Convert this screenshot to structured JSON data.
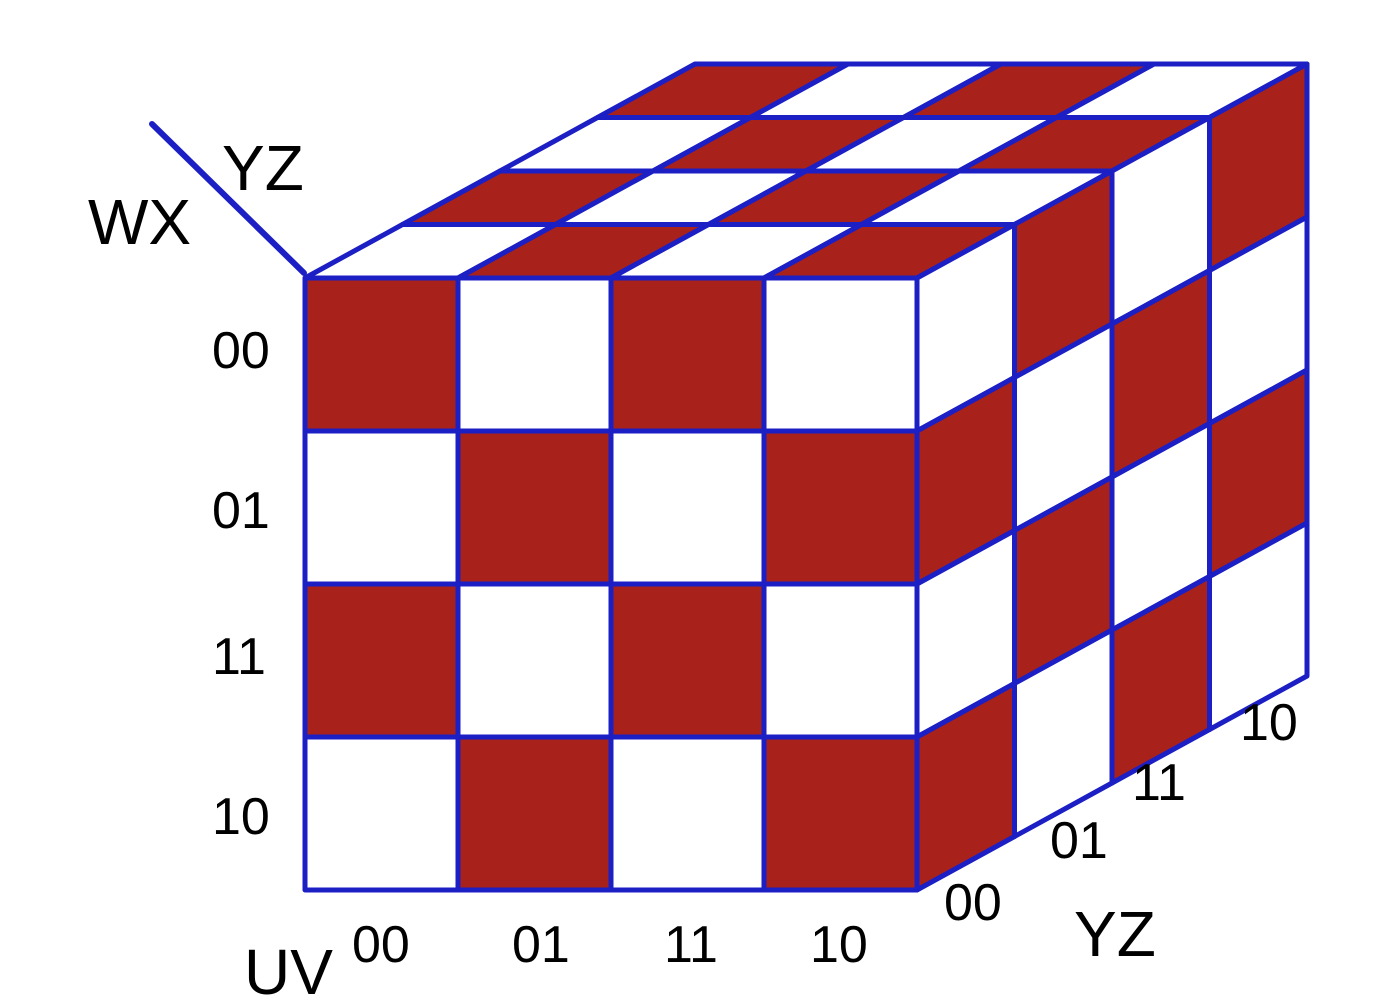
{
  "colors": {
    "filled": "#a8221b",
    "empty": "#ffffff",
    "grid_line": "#1c1fc4"
  },
  "labels": {
    "wx_name": "WX",
    "yz_name_top": "YZ",
    "yz_name_side": "YZ",
    "uv_name": "UV"
  },
  "front_rows": [
    "00",
    "01",
    "11",
    "10"
  ],
  "front_cols": [
    "00",
    "01",
    "11",
    "10"
  ],
  "depth_labels": [
    "00",
    "01",
    "11",
    "10"
  ],
  "front_face": [
    [
      1,
      0,
      1,
      0
    ],
    [
      0,
      1,
      0,
      1
    ],
    [
      1,
      0,
      1,
      0
    ],
    [
      0,
      1,
      0,
      1
    ]
  ],
  "top_face": [
    [
      1,
      0,
      1,
      0
    ],
    [
      0,
      1,
      0,
      1
    ],
    [
      1,
      0,
      1,
      0
    ],
    [
      0,
      1,
      0,
      1
    ]
  ],
  "right_face": [
    [
      0,
      1,
      0,
      1
    ],
    [
      1,
      0,
      1,
      0
    ],
    [
      0,
      1,
      0,
      1
    ],
    [
      1,
      0,
      1,
      0
    ]
  ]
}
